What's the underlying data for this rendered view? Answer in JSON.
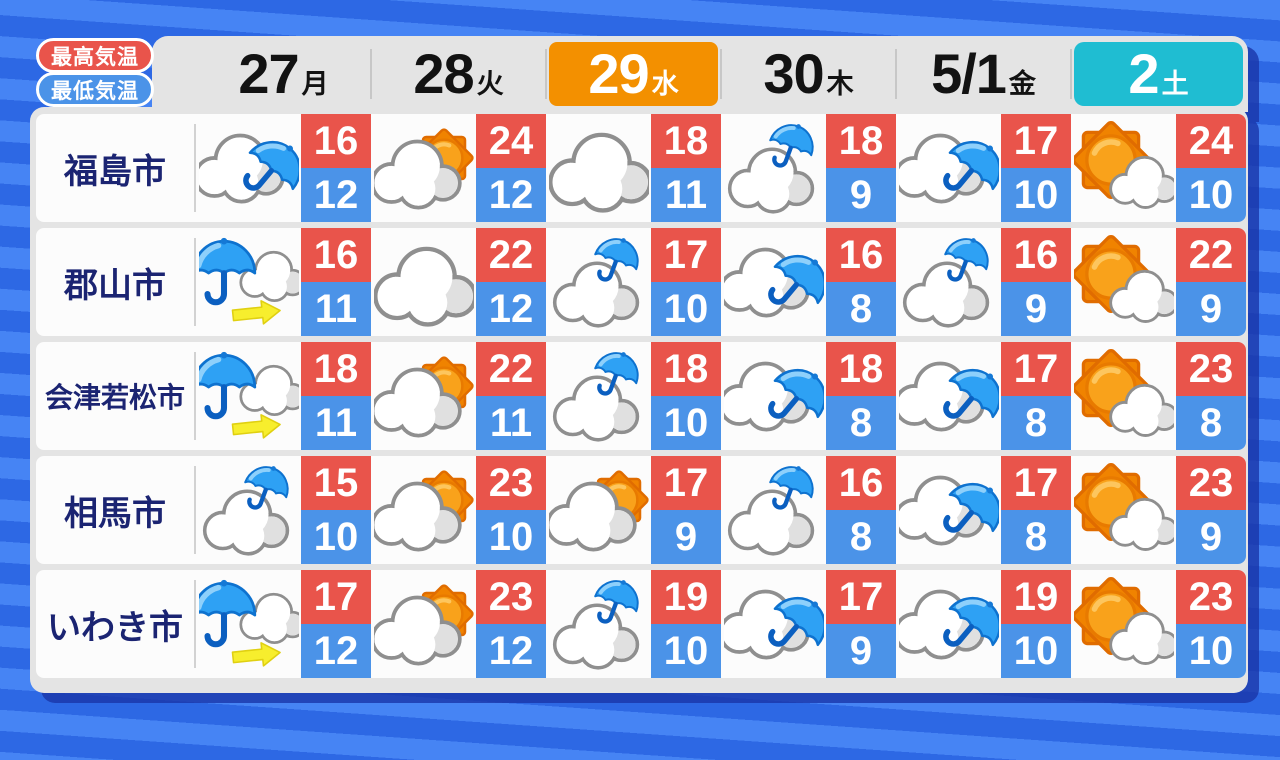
{
  "legend": {
    "high": "最高気温",
    "low": "最低気温"
  },
  "header": {
    "days": [
      {
        "num": "27",
        "suffix": "月",
        "highlight": "none"
      },
      {
        "num": "28",
        "suffix": "火",
        "highlight": "none"
      },
      {
        "num": "29",
        "suffix": "水",
        "highlight": "orange"
      },
      {
        "num": "30",
        "suffix": "木",
        "highlight": "none"
      },
      {
        "num": "5/1",
        "suffix": "金",
        "highlight": "none"
      },
      {
        "num": "2",
        "suffix": "土",
        "highlight": "cyan"
      }
    ]
  },
  "icon_meanings": {
    "cloud": "cloudy",
    "cloud-sun": "cloudy with sun",
    "sun-cloud": "sunny with clouds",
    "cloud-umbrella-side": "cloudy with rain",
    "cloud-umbrella-top": "cloudy with occasional rain",
    "rain-then-cloud": "rain then cloudy"
  },
  "colors": {
    "stripe_light": "#4684f4",
    "stripe_dark": "#2d68e4",
    "card": "#e4e4e4",
    "row": "#fcfcfc",
    "high_temp_bg": "#e9544b",
    "low_temp_bg": "#4b93e8",
    "wednesday_highlight": "#f39000",
    "saturday_highlight": "#1fbdd2",
    "city_text": "#1b2472"
  },
  "chart_data": {
    "type": "table",
    "columns": [
      "27月",
      "28火",
      "29水",
      "30木",
      "5/1金",
      "2土"
    ],
    "legend": [
      "最高気温",
      "最低気温"
    ],
    "rows": [
      {
        "city": "福島市",
        "cells": [
          {
            "weather": "cloud-umbrella-side",
            "high": 16,
            "low": 12
          },
          {
            "weather": "cloud-sun",
            "high": 24,
            "low": 12
          },
          {
            "weather": "cloud",
            "high": 18,
            "low": 11
          },
          {
            "weather": "cloud-umbrella-top",
            "high": 18,
            "low": 9
          },
          {
            "weather": "cloud-umbrella-side",
            "high": 17,
            "low": 10
          },
          {
            "weather": "sun-cloud",
            "high": 24,
            "low": 10
          }
        ]
      },
      {
        "city": "郡山市",
        "cells": [
          {
            "weather": "rain-then-cloud",
            "high": 16,
            "low": 11
          },
          {
            "weather": "cloud",
            "high": 22,
            "low": 12
          },
          {
            "weather": "cloud-umbrella-top",
            "high": 17,
            "low": 10
          },
          {
            "weather": "cloud-umbrella-side",
            "high": 16,
            "low": 8
          },
          {
            "weather": "cloud-umbrella-top",
            "high": 16,
            "low": 9
          },
          {
            "weather": "sun-cloud",
            "high": 22,
            "low": 9
          }
        ]
      },
      {
        "city": "会津若松市",
        "cells": [
          {
            "weather": "rain-then-cloud",
            "high": 18,
            "low": 11
          },
          {
            "weather": "cloud-sun",
            "high": 22,
            "low": 11
          },
          {
            "weather": "cloud-umbrella-top",
            "high": 18,
            "low": 10
          },
          {
            "weather": "cloud-umbrella-side",
            "high": 18,
            "low": 8
          },
          {
            "weather": "cloud-umbrella-side",
            "high": 17,
            "low": 8
          },
          {
            "weather": "sun-cloud",
            "high": 23,
            "low": 8
          }
        ]
      },
      {
        "city": "相馬市",
        "cells": [
          {
            "weather": "cloud-umbrella-top",
            "high": 15,
            "low": 10
          },
          {
            "weather": "cloud-sun",
            "high": 23,
            "low": 10
          },
          {
            "weather": "cloud-sun",
            "high": 17,
            "low": 9
          },
          {
            "weather": "cloud-umbrella-top",
            "high": 16,
            "low": 8
          },
          {
            "weather": "cloud-umbrella-side",
            "high": 17,
            "low": 8
          },
          {
            "weather": "sun-cloud",
            "high": 23,
            "low": 9
          }
        ]
      },
      {
        "city": "いわき市",
        "cells": [
          {
            "weather": "rain-then-cloud",
            "high": 17,
            "low": 12
          },
          {
            "weather": "cloud-sun",
            "high": 23,
            "low": 12
          },
          {
            "weather": "cloud-umbrella-top",
            "high": 19,
            "low": 10
          },
          {
            "weather": "cloud-umbrella-side",
            "high": 17,
            "low": 9
          },
          {
            "weather": "cloud-umbrella-side",
            "high": 19,
            "low": 10
          },
          {
            "weather": "sun-cloud",
            "high": 23,
            "low": 10
          }
        ]
      }
    ]
  }
}
